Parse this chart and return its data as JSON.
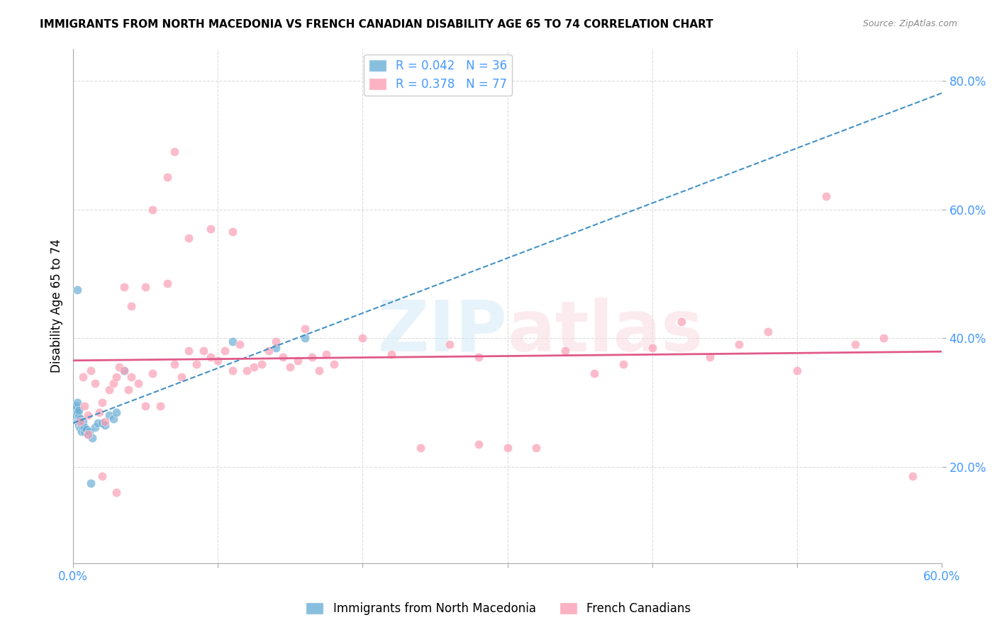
{
  "title": "IMMIGRANTS FROM NORTH MACEDONIA VS FRENCH CANADIAN DISABILITY AGE 65 TO 74 CORRELATION CHART",
  "source": "Source: ZipAtlas.com",
  "xlabel_label": "",
  "ylabel_label": "Disability Age 65 to 74",
  "xlim": [
    0.0,
    0.6
  ],
  "ylim": [
    0.05,
    0.85
  ],
  "xticks": [
    0.0,
    0.1,
    0.2,
    0.3,
    0.4,
    0.5,
    0.6
  ],
  "yticks": [
    0.2,
    0.4,
    0.6,
    0.8
  ],
  "ytick_labels": [
    "20.0%",
    "40.0%",
    "60.0%",
    "80.0%"
  ],
  "xtick_labels": [
    "0.0%",
    "",
    "",
    "",
    "",
    "",
    "60.0%"
  ],
  "blue_R": 0.042,
  "blue_N": 36,
  "pink_R": 0.378,
  "pink_N": 77,
  "blue_color": "#6baed6",
  "pink_color": "#fa9fb5",
  "blue_line_color": "#4292c6",
  "pink_line_color": "#e05a8a",
  "watermark": "ZIPatlas",
  "blue_points_x": [
    0.001,
    0.002,
    0.002,
    0.003,
    0.003,
    0.003,
    0.004,
    0.004,
    0.004,
    0.004,
    0.005,
    0.005,
    0.005,
    0.006,
    0.006,
    0.007,
    0.007,
    0.008,
    0.008,
    0.009,
    0.01,
    0.011,
    0.012,
    0.013,
    0.015,
    0.017,
    0.02,
    0.022,
    0.025,
    0.028,
    0.03,
    0.035,
    0.11,
    0.14,
    0.16,
    0.003
  ],
  "blue_points_y": [
    0.28,
    0.29,
    0.295,
    0.27,
    0.285,
    0.3,
    0.265,
    0.272,
    0.278,
    0.288,
    0.26,
    0.268,
    0.275,
    0.255,
    0.265,
    0.26,
    0.27,
    0.255,
    0.262,
    0.258,
    0.25,
    0.255,
    0.175,
    0.245,
    0.262,
    0.268,
    0.268,
    0.265,
    0.28,
    0.275,
    0.285,
    0.35,
    0.395,
    0.385,
    0.4,
    0.475
  ],
  "pink_points_x": [
    0.005,
    0.007,
    0.008,
    0.01,
    0.012,
    0.015,
    0.018,
    0.02,
    0.022,
    0.025,
    0.028,
    0.03,
    0.032,
    0.035,
    0.038,
    0.04,
    0.045,
    0.05,
    0.055,
    0.06,
    0.065,
    0.07,
    0.075,
    0.08,
    0.085,
    0.09,
    0.095,
    0.1,
    0.105,
    0.11,
    0.115,
    0.12,
    0.125,
    0.13,
    0.135,
    0.14,
    0.145,
    0.15,
    0.155,
    0.16,
    0.165,
    0.17,
    0.175,
    0.18,
    0.2,
    0.22,
    0.24,
    0.26,
    0.28,
    0.3,
    0.32,
    0.34,
    0.36,
    0.38,
    0.4,
    0.42,
    0.44,
    0.46,
    0.48,
    0.5,
    0.52,
    0.54,
    0.56,
    0.58,
    0.01,
    0.02,
    0.03,
    0.035,
    0.04,
    0.05,
    0.055,
    0.065,
    0.07,
    0.08,
    0.095,
    0.11,
    0.28
  ],
  "pink_points_y": [
    0.27,
    0.34,
    0.295,
    0.28,
    0.35,
    0.33,
    0.285,
    0.3,
    0.27,
    0.32,
    0.33,
    0.34,
    0.355,
    0.35,
    0.32,
    0.34,
    0.33,
    0.295,
    0.345,
    0.295,
    0.485,
    0.36,
    0.34,
    0.38,
    0.36,
    0.38,
    0.37,
    0.365,
    0.38,
    0.35,
    0.39,
    0.35,
    0.355,
    0.36,
    0.38,
    0.395,
    0.37,
    0.355,
    0.365,
    0.415,
    0.37,
    0.35,
    0.375,
    0.36,
    0.4,
    0.375,
    0.23,
    0.39,
    0.37,
    0.23,
    0.23,
    0.38,
    0.345,
    0.36,
    0.385,
    0.425,
    0.37,
    0.39,
    0.41,
    0.35,
    0.62,
    0.39,
    0.4,
    0.185,
    0.25,
    0.185,
    0.16,
    0.48,
    0.45,
    0.48,
    0.6,
    0.65,
    0.69,
    0.555,
    0.57,
    0.565,
    0.235
  ]
}
